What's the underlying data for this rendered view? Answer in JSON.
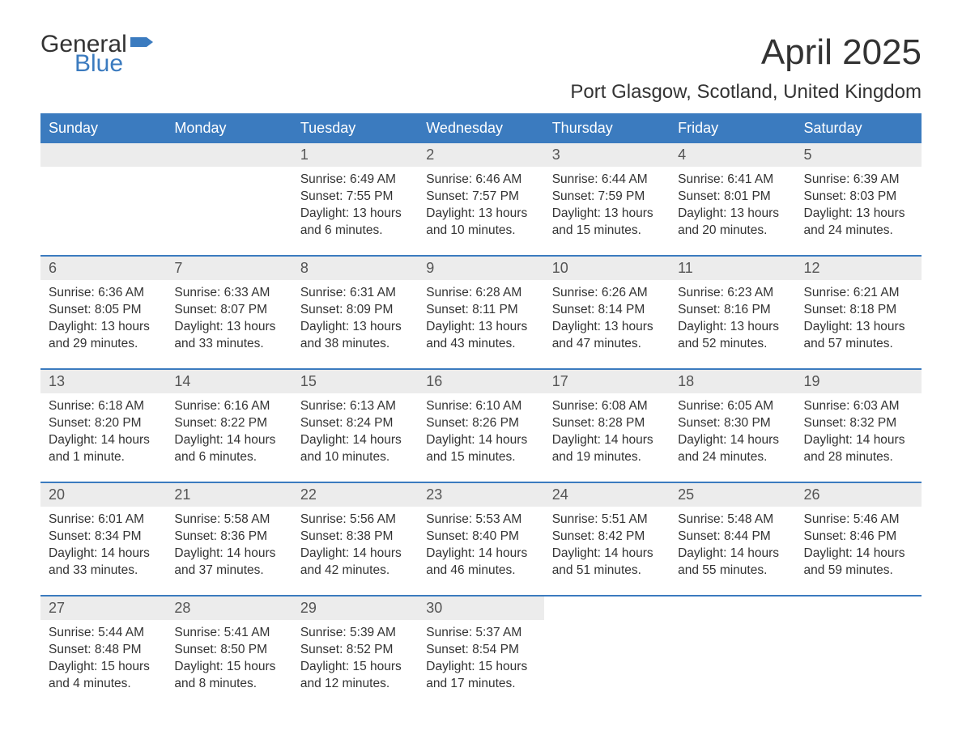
{
  "logo": {
    "text_general": "General",
    "text_blue": "Blue",
    "icon_color": "#3b7bbf"
  },
  "title": "April 2025",
  "location": "Port Glasgow, Scotland, United Kingdom",
  "colors": {
    "header_bg": "#3b7bbf",
    "header_text": "#ffffff",
    "daynum_bg": "#ececec",
    "border": "#3b7bbf",
    "body_text": "#333333"
  },
  "day_headers": [
    "Sunday",
    "Monday",
    "Tuesday",
    "Wednesday",
    "Thursday",
    "Friday",
    "Saturday"
  ],
  "weeks": [
    [
      null,
      null,
      {
        "n": "1",
        "sr": "Sunrise: 6:49 AM",
        "ss": "Sunset: 7:55 PM",
        "dl": "Daylight: 13 hours and 6 minutes."
      },
      {
        "n": "2",
        "sr": "Sunrise: 6:46 AM",
        "ss": "Sunset: 7:57 PM",
        "dl": "Daylight: 13 hours and 10 minutes."
      },
      {
        "n": "3",
        "sr": "Sunrise: 6:44 AM",
        "ss": "Sunset: 7:59 PM",
        "dl": "Daylight: 13 hours and 15 minutes."
      },
      {
        "n": "4",
        "sr": "Sunrise: 6:41 AM",
        "ss": "Sunset: 8:01 PM",
        "dl": "Daylight: 13 hours and 20 minutes."
      },
      {
        "n": "5",
        "sr": "Sunrise: 6:39 AM",
        "ss": "Sunset: 8:03 PM",
        "dl": "Daylight: 13 hours and 24 minutes."
      }
    ],
    [
      {
        "n": "6",
        "sr": "Sunrise: 6:36 AM",
        "ss": "Sunset: 8:05 PM",
        "dl": "Daylight: 13 hours and 29 minutes."
      },
      {
        "n": "7",
        "sr": "Sunrise: 6:33 AM",
        "ss": "Sunset: 8:07 PM",
        "dl": "Daylight: 13 hours and 33 minutes."
      },
      {
        "n": "8",
        "sr": "Sunrise: 6:31 AM",
        "ss": "Sunset: 8:09 PM",
        "dl": "Daylight: 13 hours and 38 minutes."
      },
      {
        "n": "9",
        "sr": "Sunrise: 6:28 AM",
        "ss": "Sunset: 8:11 PM",
        "dl": "Daylight: 13 hours and 43 minutes."
      },
      {
        "n": "10",
        "sr": "Sunrise: 6:26 AM",
        "ss": "Sunset: 8:14 PM",
        "dl": "Daylight: 13 hours and 47 minutes."
      },
      {
        "n": "11",
        "sr": "Sunrise: 6:23 AM",
        "ss": "Sunset: 8:16 PM",
        "dl": "Daylight: 13 hours and 52 minutes."
      },
      {
        "n": "12",
        "sr": "Sunrise: 6:21 AM",
        "ss": "Sunset: 8:18 PM",
        "dl": "Daylight: 13 hours and 57 minutes."
      }
    ],
    [
      {
        "n": "13",
        "sr": "Sunrise: 6:18 AM",
        "ss": "Sunset: 8:20 PM",
        "dl": "Daylight: 14 hours and 1 minute."
      },
      {
        "n": "14",
        "sr": "Sunrise: 6:16 AM",
        "ss": "Sunset: 8:22 PM",
        "dl": "Daylight: 14 hours and 6 minutes."
      },
      {
        "n": "15",
        "sr": "Sunrise: 6:13 AM",
        "ss": "Sunset: 8:24 PM",
        "dl": "Daylight: 14 hours and 10 minutes."
      },
      {
        "n": "16",
        "sr": "Sunrise: 6:10 AM",
        "ss": "Sunset: 8:26 PM",
        "dl": "Daylight: 14 hours and 15 minutes."
      },
      {
        "n": "17",
        "sr": "Sunrise: 6:08 AM",
        "ss": "Sunset: 8:28 PM",
        "dl": "Daylight: 14 hours and 19 minutes."
      },
      {
        "n": "18",
        "sr": "Sunrise: 6:05 AM",
        "ss": "Sunset: 8:30 PM",
        "dl": "Daylight: 14 hours and 24 minutes."
      },
      {
        "n": "19",
        "sr": "Sunrise: 6:03 AM",
        "ss": "Sunset: 8:32 PM",
        "dl": "Daylight: 14 hours and 28 minutes."
      }
    ],
    [
      {
        "n": "20",
        "sr": "Sunrise: 6:01 AM",
        "ss": "Sunset: 8:34 PM",
        "dl": "Daylight: 14 hours and 33 minutes."
      },
      {
        "n": "21",
        "sr": "Sunrise: 5:58 AM",
        "ss": "Sunset: 8:36 PM",
        "dl": "Daylight: 14 hours and 37 minutes."
      },
      {
        "n": "22",
        "sr": "Sunrise: 5:56 AM",
        "ss": "Sunset: 8:38 PM",
        "dl": "Daylight: 14 hours and 42 minutes."
      },
      {
        "n": "23",
        "sr": "Sunrise: 5:53 AM",
        "ss": "Sunset: 8:40 PM",
        "dl": "Daylight: 14 hours and 46 minutes."
      },
      {
        "n": "24",
        "sr": "Sunrise: 5:51 AM",
        "ss": "Sunset: 8:42 PM",
        "dl": "Daylight: 14 hours and 51 minutes."
      },
      {
        "n": "25",
        "sr": "Sunrise: 5:48 AM",
        "ss": "Sunset: 8:44 PM",
        "dl": "Daylight: 14 hours and 55 minutes."
      },
      {
        "n": "26",
        "sr": "Sunrise: 5:46 AM",
        "ss": "Sunset: 8:46 PM",
        "dl": "Daylight: 14 hours and 59 minutes."
      }
    ],
    [
      {
        "n": "27",
        "sr": "Sunrise: 5:44 AM",
        "ss": "Sunset: 8:48 PM",
        "dl": "Daylight: 15 hours and 4 minutes."
      },
      {
        "n": "28",
        "sr": "Sunrise: 5:41 AM",
        "ss": "Sunset: 8:50 PM",
        "dl": "Daylight: 15 hours and 8 minutes."
      },
      {
        "n": "29",
        "sr": "Sunrise: 5:39 AM",
        "ss": "Sunset: 8:52 PM",
        "dl": "Daylight: 15 hours and 12 minutes."
      },
      {
        "n": "30",
        "sr": "Sunrise: 5:37 AM",
        "ss": "Sunset: 8:54 PM",
        "dl": "Daylight: 15 hours and 17 minutes."
      },
      null,
      null,
      null
    ]
  ]
}
